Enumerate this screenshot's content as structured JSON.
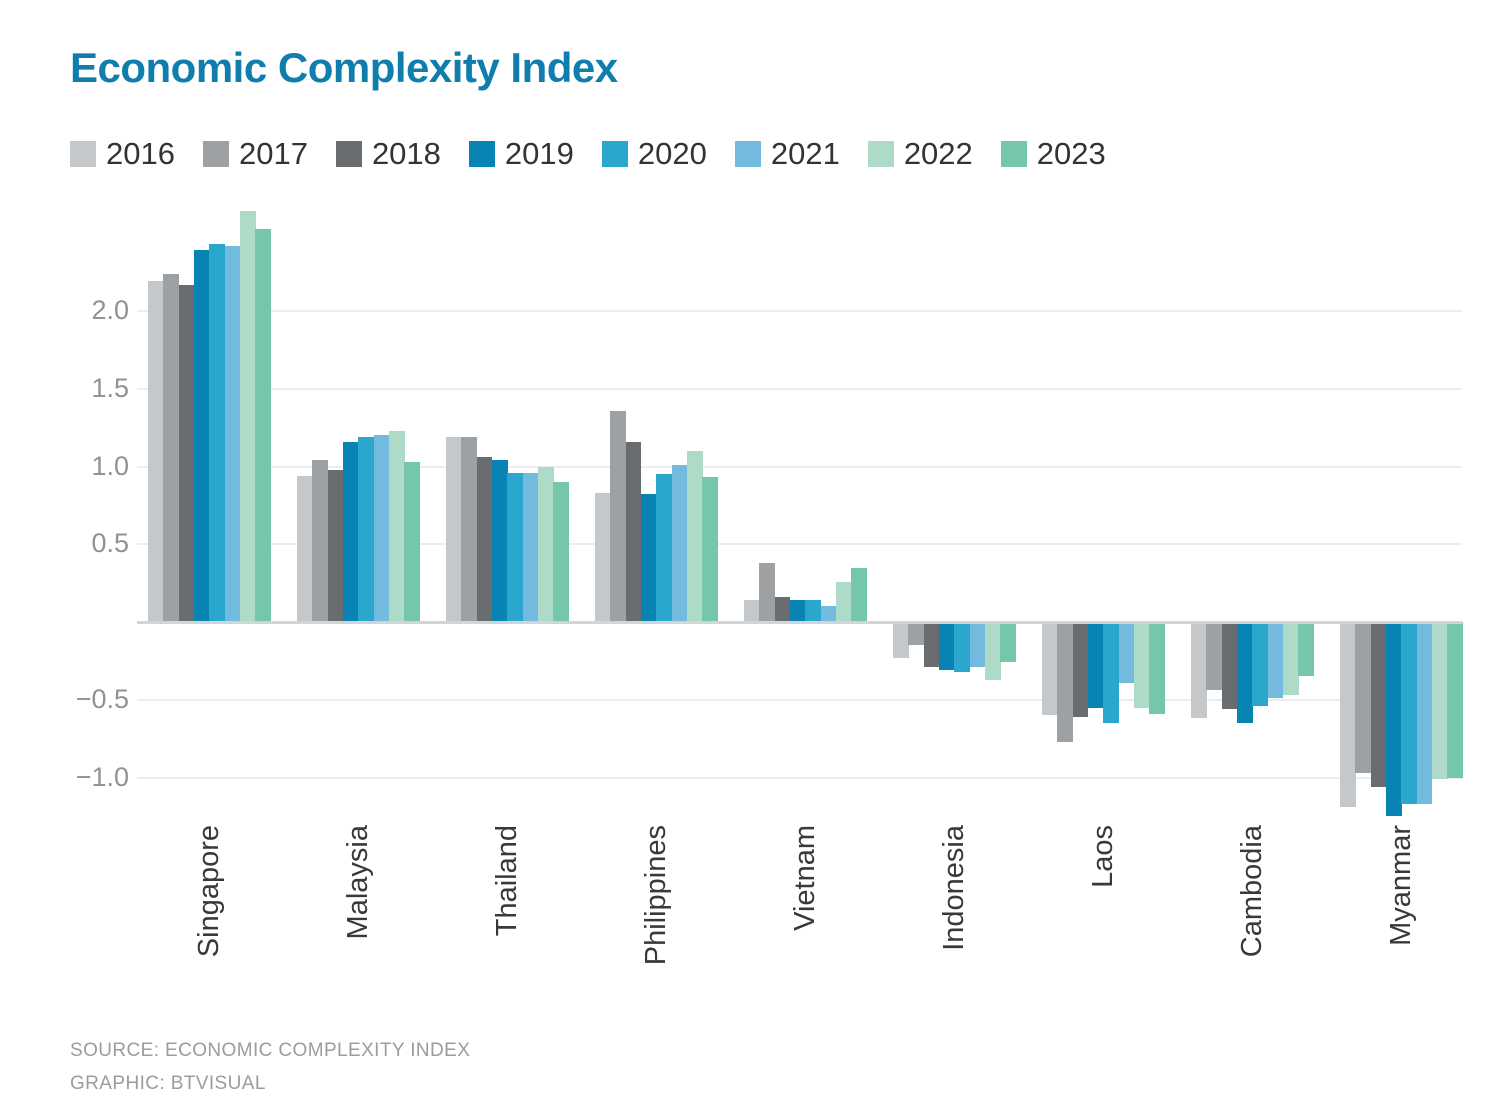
{
  "title": "Economic Complexity Index",
  "colors": {
    "title": "#0f7dae",
    "grid": "#ededed",
    "zero_line": "#d2d5d7",
    "tick_text": "#8e9396",
    "category_text": "#38393b",
    "legend_text": "#303436",
    "footer_text": "#9c9c9c"
  },
  "footer": {
    "line1": "SOURCE: ECONOMIC COMPLEXITY INDEX",
    "line2": "GRAPHIC: BTVISUAL"
  },
  "chart_data": {
    "type": "bar",
    "title": "Economic Complexity Index",
    "xlabel": "",
    "ylabel": "",
    "ylim": [
      -1.3,
      2.72
    ],
    "grid": "horizontal",
    "legend_position": "top",
    "zero_line_shown": true,
    "categories": [
      "Singapore",
      "Malaysia",
      "Thailand",
      "Philippines",
      "Vietnam",
      "Indonesia",
      "Laos",
      "Cambodia",
      "Myanmar"
    ],
    "yticks": [
      {
        "label": "2.0",
        "value": 2.0
      },
      {
        "label": "1.5",
        "value": 1.5
      },
      {
        "label": "1.0",
        "value": 1.0
      },
      {
        "label": "0.5",
        "value": 0.5
      },
      {
        "label": "−0.5",
        "value": -0.5
      },
      {
        "label": "−1.0",
        "value": -1.0
      }
    ],
    "series": [
      {
        "name": "2016",
        "color": "#c5c8ca",
        "values": [
          2.19,
          0.94,
          1.19,
          0.83,
          0.14,
          -0.23,
          -0.6,
          -0.62,
          -1.19
        ]
      },
      {
        "name": "2017",
        "color": "#9da1a4",
        "values": [
          2.24,
          1.04,
          1.19,
          1.36,
          0.38,
          -0.15,
          -0.77,
          -0.44,
          -0.97
        ]
      },
      {
        "name": "2018",
        "color": "#696d6f",
        "values": [
          2.17,
          0.98,
          1.06,
          1.16,
          0.16,
          -0.29,
          -0.61,
          -0.56,
          -1.06
        ]
      },
      {
        "name": "2019",
        "color": "#0884b4",
        "values": [
          2.39,
          1.16,
          1.04,
          0.82,
          0.14,
          -0.31,
          -0.55,
          -0.65,
          -1.25
        ]
      },
      {
        "name": "2020",
        "color": "#2ba6cd",
        "values": [
          2.43,
          1.19,
          0.96,
          0.95,
          0.14,
          -0.32,
          -0.65,
          -0.54,
          -1.17
        ]
      },
      {
        "name": "2021",
        "color": "#72bbdf",
        "values": [
          2.42,
          1.2,
          0.96,
          1.01,
          0.1,
          -0.29,
          -0.39,
          -0.49,
          -1.17
        ]
      },
      {
        "name": "2022",
        "color": "#aedbc8",
        "values": [
          2.64,
          1.23,
          1.0,
          1.1,
          0.26,
          -0.37,
          -0.55,
          -0.47,
          -1.01
        ]
      },
      {
        "name": "2023",
        "color": "#75c7ab",
        "values": [
          2.53,
          1.03,
          0.9,
          0.93,
          0.35,
          -0.26,
          -0.59,
          -0.35,
          -1.0
        ]
      }
    ]
  }
}
